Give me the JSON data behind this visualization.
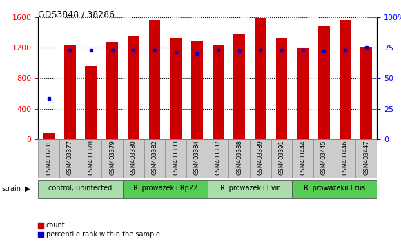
{
  "title": "GDS3848 / 38286",
  "samples": [
    "GSM403281",
    "GSM403377",
    "GSM403378",
    "GSM403379",
    "GSM403380",
    "GSM403382",
    "GSM403383",
    "GSM403384",
    "GSM403387",
    "GSM403388",
    "GSM403389",
    "GSM403391",
    "GSM403444",
    "GSM403445",
    "GSM403446",
    "GSM403447"
  ],
  "counts": [
    80,
    1230,
    960,
    1270,
    1350,
    1560,
    1330,
    1290,
    1230,
    1370,
    1590,
    1330,
    1200,
    1490,
    1560,
    1210
  ],
  "percentiles": [
    33,
    73,
    73,
    73,
    73,
    73,
    71,
    70,
    73,
    72,
    73,
    73,
    73,
    72,
    73,
    75
  ],
  "groups": [
    {
      "label": "control, uninfected",
      "start": 0,
      "end": 4,
      "color": "#aaddaa"
    },
    {
      "label": "R. prowazekii Rp22",
      "start": 4,
      "end": 8,
      "color": "#55cc55"
    },
    {
      "label": "R. prowazekii Evir",
      "start": 8,
      "end": 12,
      "color": "#aaddaa"
    },
    {
      "label": "R. prowazekii Erus",
      "start": 12,
      "end": 16,
      "color": "#55cc55"
    }
  ],
  "ylim_left": [
    0,
    1600
  ],
  "ylim_right": [
    0,
    100
  ],
  "yticks_left": [
    0,
    400,
    800,
    1200,
    1600
  ],
  "yticks_right": [
    0,
    25,
    50,
    75,
    100
  ],
  "bar_color": "#cc0000",
  "dot_color": "#0000cc",
  "bar_width": 0.55,
  "scale_factor": 16.0,
  "xtick_bg": "#cccccc",
  "strain_label_color": "#000000"
}
